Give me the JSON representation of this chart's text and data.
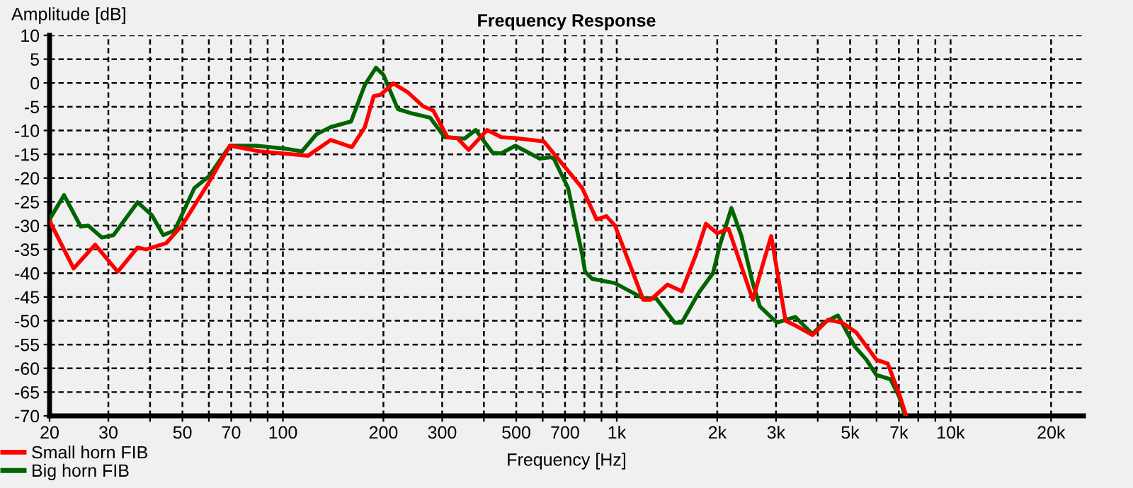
{
  "chart_data": {
    "type": "line",
    "title": "Frequency Response",
    "xlabel": "Frequency [Hz]",
    "ylabel": "Amplitude [dB]",
    "log": "x",
    "grid": true,
    "legend": "bottom left",
    "line_style": "solid",
    "marker": "none",
    "xlim": [
      20,
      25000
    ],
    "xticks": [
      20,
      30,
      {
        "value": 40,
        "label": null
      },
      50,
      {
        "value": 60,
        "label": null
      },
      70,
      {
        "value": 80,
        "label": null
      },
      {
        "value": 90,
        "label": null
      },
      100,
      200,
      300,
      {
        "value": 400,
        "label": null
      },
      500,
      {
        "value": 600,
        "label": null
      },
      700,
      {
        "value": 800,
        "label": null
      },
      {
        "value": 900,
        "label": null
      },
      {
        "value": 1000,
        "label": "1k"
      },
      {
        "value": 2000,
        "label": "2k"
      },
      {
        "value": 3000,
        "label": "3k"
      },
      {
        "value": 4000,
        "label": null
      },
      {
        "value": 5000,
        "label": "5k"
      },
      {
        "value": 6000,
        "label": null
      },
      {
        "value": 7000,
        "label": "7k"
      },
      {
        "value": 8000,
        "label": null
      },
      {
        "value": 9000,
        "label": null
      },
      {
        "value": 10000,
        "label": "10k"
      },
      {
        "value": 20000,
        "label": "20k"
      }
    ],
    "ylim": [
      -70,
      10
    ],
    "yticks": [
      -70,
      -65,
      -60,
      -55,
      -50,
      -45,
      -40,
      -35,
      -30,
      -25,
      -20,
      -15,
      -10,
      -5,
      0,
      5,
      10
    ],
    "series": [
      {
        "name": "Small horn FIB",
        "color": "#ff0000",
        "x": [
          20,
          23.6,
          27.4,
          32,
          36.7,
          38.9,
          44.7,
          49.8,
          59.9,
          69.4,
          85.3,
          119,
          139,
          161,
          176,
          187,
          196,
          214,
          236,
          263,
          282,
          311,
          333,
          360,
          409,
          451,
          497,
          605,
          694,
          788,
          870,
          931,
          988,
          1027,
          1201,
          1262,
          1420,
          1566,
          1727,
          1850,
          2000,
          2163,
          2556,
          2737,
          2902,
          3203,
          3428,
          3856,
          4294,
          4736,
          5224,
          5993,
          6480,
          7010,
          7360
        ],
        "values": [
          -29,
          -39,
          -34,
          -39.7,
          -34.6,
          -35,
          -33.7,
          -30,
          -21,
          -13.2,
          -14.4,
          -15.3,
          -12,
          -13.5,
          -9.3,
          -2.8,
          -2.5,
          -0.1,
          -1.9,
          -4.9,
          -5.8,
          -11.4,
          -11.6,
          -14.1,
          -9.9,
          -11.4,
          -11.6,
          -12.3,
          -17.4,
          -22.1,
          -28.7,
          -28,
          -30,
          -33.1,
          -45.6,
          -45.6,
          -42.4,
          -43.8,
          -36.1,
          -29.6,
          -31.6,
          -30.7,
          -45.6,
          -38.2,
          -32.2,
          -50,
          -51,
          -53,
          -49.8,
          -50.4,
          -52.5,
          -58.2,
          -59,
          -65.3,
          -70
        ]
      },
      {
        "name": "Big horn FIB",
        "color": "#006400",
        "x": [
          20,
          22.1,
          24.8,
          26.1,
          28.7,
          31.1,
          36.7,
          40.5,
          43.8,
          47.4,
          54.3,
          59.9,
          69.4,
          82.8,
          101,
          114,
          126,
          139,
          160,
          176,
          190,
          200,
          221,
          243,
          276,
          305,
          350,
          378,
          425,
          451,
          497,
          588,
          635,
          648,
          715,
          788,
          804,
          844,
          988,
          1201,
          1312,
          1491,
          1566,
          1761,
          1942,
          2039,
          2206,
          2363,
          2556,
          2684,
          3018,
          3428,
          3856,
          4170,
          4598,
          5174,
          5596,
          5993,
          6607,
          7010,
          7300
        ],
        "values": [
          -28.7,
          -23.6,
          -30.2,
          -30,
          -32.5,
          -32,
          -25.1,
          -27.8,
          -32,
          -31,
          -22.1,
          -19.7,
          -13.2,
          -13.2,
          -13.8,
          -14.4,
          -10.8,
          -9.3,
          -8.1,
          -0.4,
          3.2,
          1.7,
          -5.5,
          -6.4,
          -7.3,
          -11.4,
          -11.7,
          -9.9,
          -14.7,
          -14.8,
          -13.2,
          -15.9,
          -15.6,
          -15.9,
          -22.1,
          -36.1,
          -39.7,
          -41.2,
          -42.1,
          -45.3,
          -45.3,
          -50.4,
          -50.4,
          -44.1,
          -40,
          -34,
          -26.3,
          -32.2,
          -42.1,
          -47,
          -50.4,
          -49.2,
          -52.8,
          -50.4,
          -48.9,
          -55.5,
          -58.2,
          -61.4,
          -62.3,
          -65.9,
          -70
        ]
      }
    ]
  }
}
